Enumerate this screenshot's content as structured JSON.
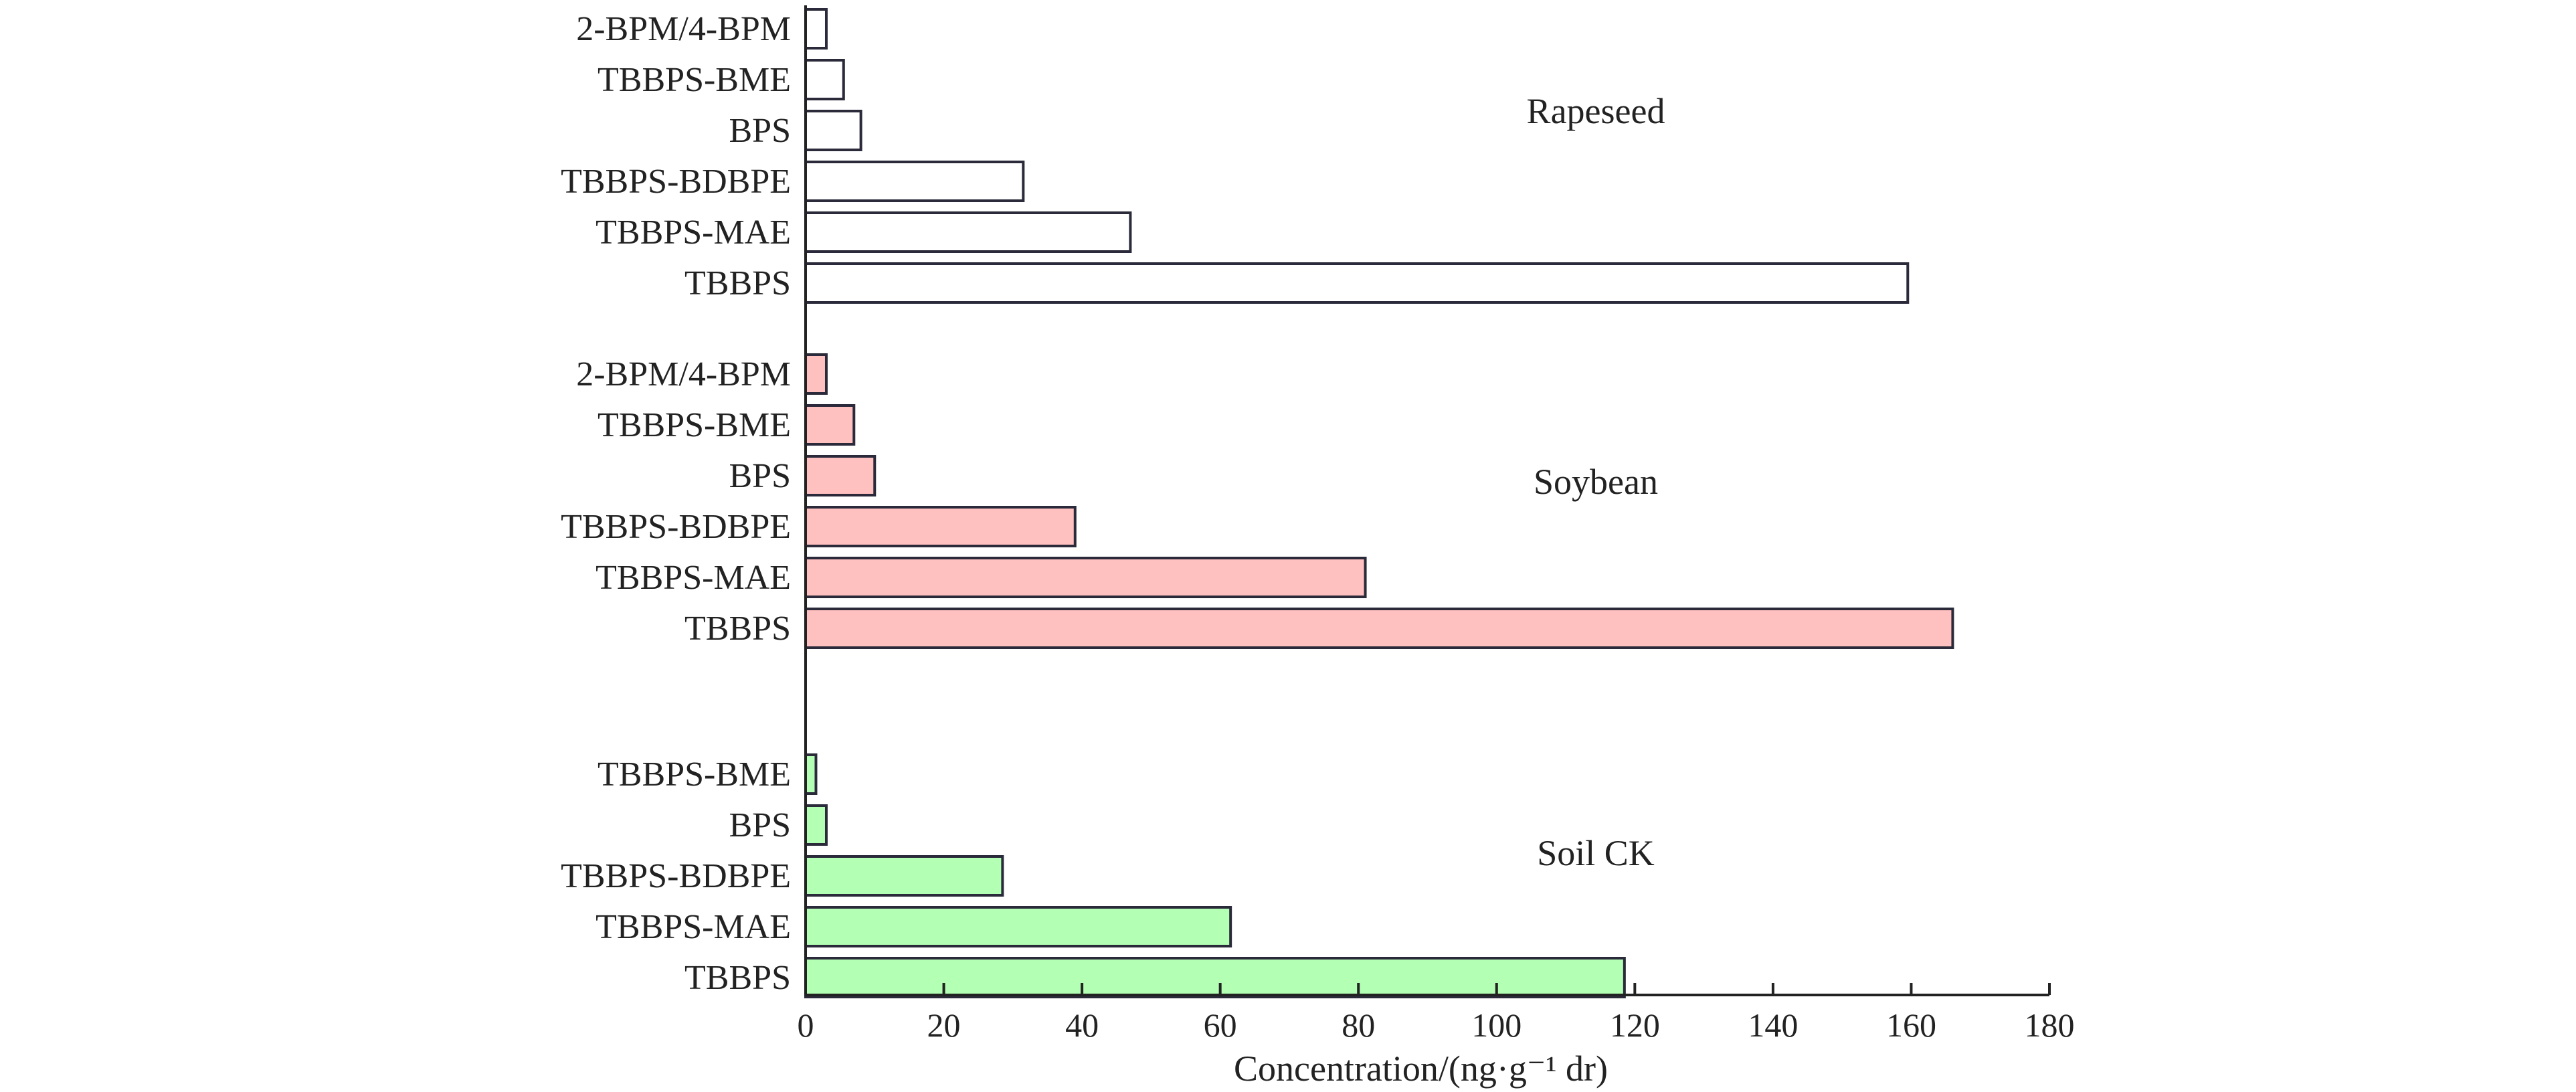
{
  "chart_data": {
    "type": "bar",
    "orientation": "horizontal",
    "title": "",
    "xlabel": "Concentration/(ng·g⁻¹ dr)",
    "ylabel": "",
    "xlim": [
      0,
      180
    ],
    "xticks": [
      "0",
      "20",
      "40",
      "60",
      "80",
      "100",
      "120",
      "140",
      "160",
      "180"
    ],
    "grid": false,
    "groups": [
      {
        "name": "Rapeseed",
        "color": "#ffffff",
        "categories": [
          "2-BPM/4-BPM",
          "TBBPS-BME",
          "BPS",
          "TBBPS-BDBPE",
          "TBBPS-MAE",
          "TBBPS"
        ],
        "values": [
          3,
          5.5,
          8,
          31.5,
          47,
          159.5
        ]
      },
      {
        "name": "Soybean",
        "color": "#ffc0c0",
        "categories": [
          "2-BPM/4-BPM",
          "TBBPS-BME",
          "BPS",
          "TBBPS-BDBPE",
          "TBBPS-MAE",
          "TBBPS"
        ],
        "values": [
          3,
          7,
          10,
          39,
          81,
          166
        ]
      },
      {
        "name": "Soil CK",
        "color": "#b3ffb3",
        "categories": [
          "TBBPS-BME",
          "BPS",
          "TBBPS-BDBPE",
          "TBBPS-MAE",
          "TBBPS"
        ],
        "values": [
          1.5,
          3,
          28.5,
          61.5,
          118.5
        ]
      }
    ]
  }
}
